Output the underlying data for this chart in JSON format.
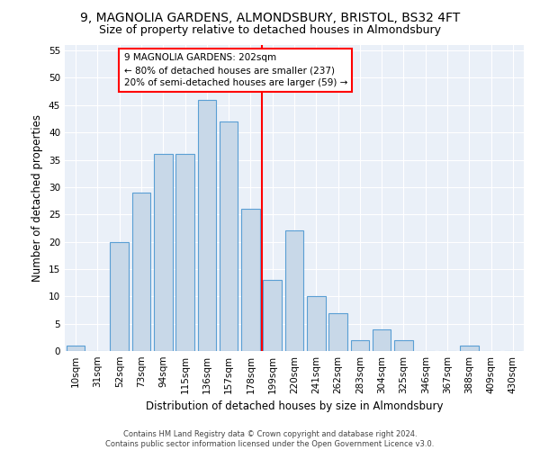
{
  "title_line1": "9, MAGNOLIA GARDENS, ALMONDSBURY, BRISTOL, BS32 4FT",
  "title_line2": "Size of property relative to detached houses in Almondsbury",
  "xlabel": "Distribution of detached houses by size in Almondsbury",
  "ylabel": "Number of detached properties",
  "footnote": "Contains HM Land Registry data © Crown copyright and database right 2024.\nContains public sector information licensed under the Open Government Licence v3.0.",
  "bar_labels": [
    "10sqm",
    "31sqm",
    "52sqm",
    "73sqm",
    "94sqm",
    "115sqm",
    "136sqm",
    "157sqm",
    "178sqm",
    "199sqm",
    "220sqm",
    "241sqm",
    "262sqm",
    "283sqm",
    "304sqm",
    "325sqm",
    "346sqm",
    "367sqm",
    "388sqm",
    "409sqm",
    "430sqm"
  ],
  "bar_values": [
    1,
    0,
    20,
    29,
    36,
    36,
    46,
    42,
    26,
    13,
    22,
    10,
    7,
    2,
    4,
    2,
    0,
    0,
    1,
    0,
    0
  ],
  "bar_color": "#c8d8e8",
  "bar_edge_color": "#5a9fd4",
  "vline_pos": 8.5,
  "annotation_text": "9 MAGNOLIA GARDENS: 202sqm\n← 80% of detached houses are smaller (237)\n20% of semi-detached houses are larger (59) →",
  "annotation_box_color": "white",
  "annotation_box_edge": "red",
  "vline_color": "red",
  "ylim": [
    0,
    56
  ],
  "yticks": [
    0,
    5,
    10,
    15,
    20,
    25,
    30,
    35,
    40,
    45,
    50,
    55
  ],
  "bg_color": "#eaf0f8",
  "grid_color": "white",
  "title_fontsize": 10,
  "subtitle_fontsize": 9,
  "axis_label_fontsize": 8.5,
  "tick_fontsize": 7.5,
  "annotation_fontsize": 7.5,
  "footnote_fontsize": 6.0
}
